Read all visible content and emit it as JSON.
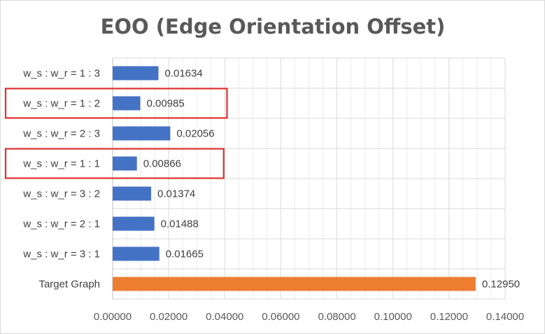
{
  "chart_data": {
    "type": "bar",
    "orientation": "horizontal",
    "title": "EOO (Edge Orientation Offset)",
    "xlabel": "",
    "ylabel": "",
    "xlim": [
      0,
      0.14
    ],
    "x_ticks": [
      "0.00000",
      "0.02000",
      "0.04000",
      "0.06000",
      "0.08000",
      "0.10000",
      "0.12000",
      "0.14000"
    ],
    "grid": true,
    "legend": "none",
    "categories": [
      "w_s : w_r = 1 : 3",
      "w_s : w_r = 1 : 2",
      "w_s : w_r = 2 : 3",
      "w_s : w_r = 1 : 1",
      "w_s : w_r = 3 : 2",
      "w_s : w_r = 2 : 1",
      "w_s : w_r = 3 : 1",
      "Target Graph"
    ],
    "values": [
      0.01634,
      0.00985,
      0.02056,
      0.00866,
      0.01374,
      0.01488,
      0.01665,
      0.1295
    ],
    "value_labels": [
      "0.01634",
      "0.00985",
      "0.02056",
      "0.00866",
      "0.01374",
      "0.01488",
      "0.01665",
      "0.12950"
    ],
    "bar_colors": [
      "#4472c4",
      "#4472c4",
      "#4472c4",
      "#4472c4",
      "#4472c4",
      "#4472c4",
      "#4472c4",
      "#ed7d31"
    ],
    "highlighted_categories": [
      "w_s : w_r = 1 : 2",
      "w_s : w_r = 1 : 1"
    ],
    "highlight_color": "#e03030"
  }
}
